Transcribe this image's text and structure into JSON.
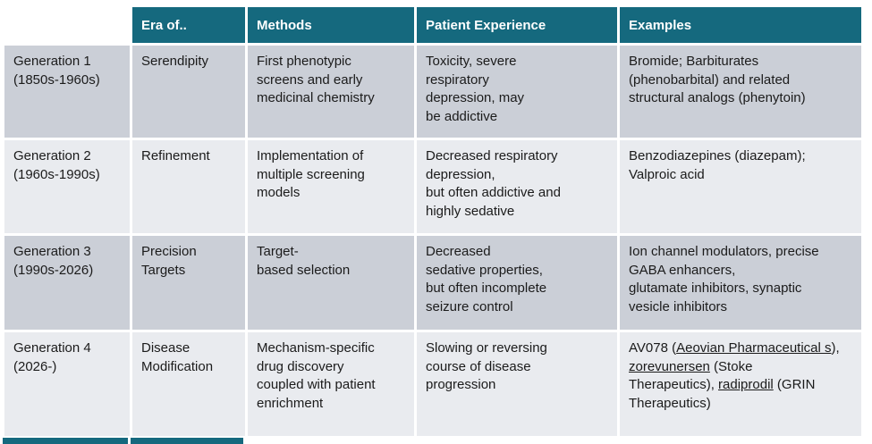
{
  "colors": {
    "header_bg": "#15697E",
    "header_text": "#FFFFFF",
    "row_dark": "#CBCFD7",
    "row_light": "#E9EBEF",
    "body_text": "#1B1B1B"
  },
  "table": {
    "headers": [
      "Era of..",
      "Methods",
      "Patient Experience",
      "Examples"
    ],
    "rows": [
      {
        "label": "Generation 1\n(1850s-1960s)",
        "cells": [
          "Serendipity",
          "First phenotypic\nscreens and early\nmedicinal chemistry",
          "Toxicity, severe\nrespiratory\ndepression, may\nbe addictive",
          "Bromide; Barbiturates\n(phenobarbital) and related\nstructural analogs (phenytoin)"
        ]
      },
      {
        "label": "Generation 2\n(1960s-1990s)",
        "cells": [
          "Refinement",
          "Implementation of\nmultiple screening\nmodels",
          "Decreased respiratory\ndepression,\nbut often addictive and\nhighly sedative",
          "Benzodiazepines (diazepam);\nValproic acid"
        ]
      },
      {
        "label": "Generation 3\n(1990s-2026)",
        "cells": [
          "Precision\nTargets",
          "Target-\nbased selection",
          "Decreased\nsedative properties,\nbut often incomplete\nseizure control",
          "Ion channel modulators, precise\nGABA enhancers,\nglutamate inhibitors, synaptic\nvesicle inhibitors"
        ]
      },
      {
        "label": "Generation 4\n(2026-)",
        "cells": [
          "Disease\nModification",
          "Mechanism-specific\ndrug discovery\ncoupled with patient\nenrichment",
          "Slowing or reversing\ncourse of disease\nprogression",
          [
            {
              "text": "AV078 ("
            },
            {
              "text": "Aeovian Pharmaceutical s",
              "underline": true
            },
            {
              "text": "), "
            },
            {
              "text": "zorevunersen",
              "underline": true
            },
            {
              "text": " (Stoke\nTherapeutics), "
            },
            {
              "text": "radiprodil",
              "underline": true
            },
            {
              "text": " (GRIN\nTherapeutics)"
            }
          ]
        ]
      }
    ]
  }
}
